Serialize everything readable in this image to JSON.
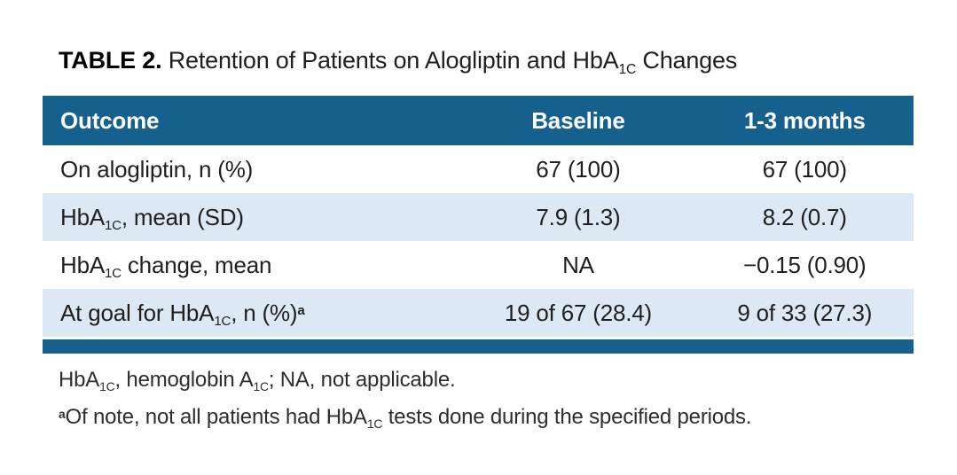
{
  "colors": {
    "header_bg": "#16608E",
    "row_alt_bg": "#DCE8F4",
    "rule_bar": "#16608E",
    "text": "#1F1F1F",
    "header_text": "#FFFFFF",
    "footnote_text": "#2E2E2E",
    "page_bg": "#FFFFFF"
  },
  "table": {
    "title": [
      {
        "t": "TABLE 2.",
        "bold": true
      },
      {
        "t": " Retention of Patients on Alogliptin and HbA"
      },
      {
        "t": "1C",
        "sub": true
      },
      {
        "t": " Changes"
      }
    ],
    "columns": [
      {
        "label": [
          {
            "t": "Outcome"
          }
        ]
      },
      {
        "label": [
          {
            "t": "Baseline"
          }
        ]
      },
      {
        "label": [
          {
            "t": "1-3 months"
          }
        ]
      }
    ],
    "rows": [
      {
        "outcome": [
          {
            "t": "On alogliptin, n (%)"
          }
        ],
        "baseline": [
          {
            "t": "67 (100)"
          }
        ],
        "months": [
          {
            "t": "67 (100)"
          }
        ]
      },
      {
        "outcome": [
          {
            "t": "HbA"
          },
          {
            "t": "1C",
            "sub": true
          },
          {
            "t": ", mean (SD)"
          }
        ],
        "baseline": [
          {
            "t": "7.9 (1.3)"
          }
        ],
        "months": [
          {
            "t": "8.2 (0.7)"
          }
        ]
      },
      {
        "outcome": [
          {
            "t": "HbA"
          },
          {
            "t": "1C",
            "sub": true
          },
          {
            "t": " change, mean"
          }
        ],
        "baseline": [
          {
            "t": "NA"
          }
        ],
        "months": [
          {
            "t": "−0.15 (0.90)"
          }
        ]
      },
      {
        "outcome": [
          {
            "t": "At goal for HbA"
          },
          {
            "t": "1C",
            "sub": true
          },
          {
            "t": ", n (%)"
          },
          {
            "t": "a",
            "sup": true
          }
        ],
        "baseline": [
          {
            "t": "19 of 67 (28.4)"
          }
        ],
        "months": [
          {
            "t": "9 of 33 (27.3)"
          }
        ]
      }
    ],
    "footnotes": [
      [
        {
          "t": "HbA"
        },
        {
          "t": "1C",
          "sub": true
        },
        {
          "t": ", hemoglobin A"
        },
        {
          "t": "1C",
          "sub": true
        },
        {
          "t": "; NA, not applicable."
        }
      ],
      [
        {
          "t": "a",
          "sup": true
        },
        {
          "t": "Of note, not all patients had HbA"
        },
        {
          "t": "1C",
          "sub": true
        },
        {
          "t": " tests done during the specified periods."
        }
      ]
    ]
  }
}
